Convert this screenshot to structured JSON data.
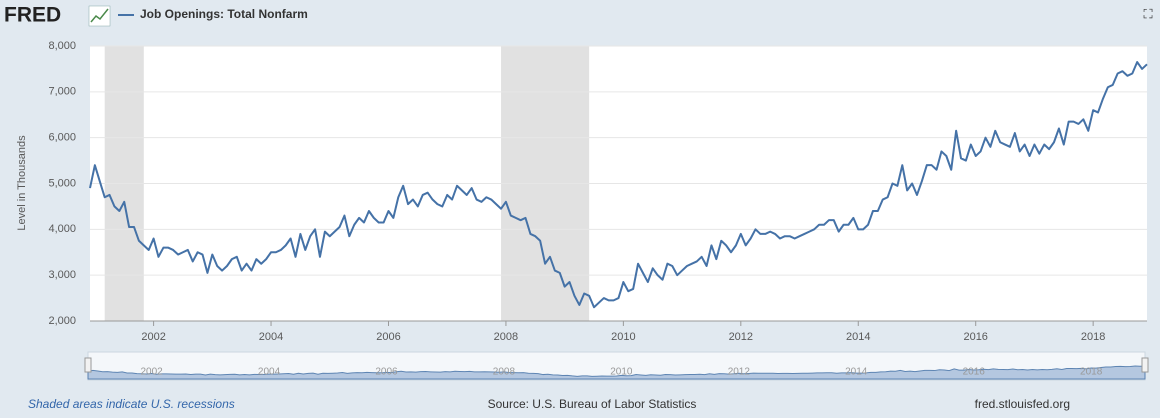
{
  "header": {
    "logo": "FRED",
    "expand_icon": "⛶"
  },
  "chart_data": {
    "type": "line",
    "y_label": "Level in Thousands",
    "series": [
      {
        "name": "Job Openings: Total Nonfarm",
        "color": "#4572a7",
        "x": [
          2000.917,
          2001,
          2001.083,
          2001.167,
          2001.25,
          2001.333,
          2001.417,
          2001.5,
          2001.583,
          2001.667,
          2001.75,
          2001.833,
          2001.917,
          2002,
          2002.083,
          2002.167,
          2002.25,
          2002.333,
          2002.417,
          2002.5,
          2002.583,
          2002.667,
          2002.75,
          2002.833,
          2002.917,
          2003,
          2003.083,
          2003.167,
          2003.25,
          2003.333,
          2003.417,
          2003.5,
          2003.583,
          2003.667,
          2003.75,
          2003.833,
          2003.917,
          2004,
          2004.083,
          2004.167,
          2004.25,
          2004.333,
          2004.417,
          2004.5,
          2004.583,
          2004.667,
          2004.75,
          2004.833,
          2004.917,
          2005,
          2005.083,
          2005.167,
          2005.25,
          2005.333,
          2005.417,
          2005.5,
          2005.583,
          2005.667,
          2005.75,
          2005.833,
          2005.917,
          2006,
          2006.083,
          2006.167,
          2006.25,
          2006.333,
          2006.417,
          2006.5,
          2006.583,
          2006.667,
          2006.75,
          2006.833,
          2006.917,
          2007,
          2007.083,
          2007.167,
          2007.25,
          2007.333,
          2007.417,
          2007.5,
          2007.583,
          2007.667,
          2007.75,
          2007.833,
          2007.917,
          2008,
          2008.083,
          2008.167,
          2008.25,
          2008.333,
          2008.417,
          2008.5,
          2008.583,
          2008.667,
          2008.75,
          2008.833,
          2008.917,
          2009,
          2009.083,
          2009.167,
          2009.25,
          2009.333,
          2009.417,
          2009.5,
          2009.583,
          2009.667,
          2009.75,
          2009.833,
          2009.917,
          2010,
          2010.083,
          2010.167,
          2010.25,
          2010.333,
          2010.417,
          2010.5,
          2010.583,
          2010.667,
          2010.75,
          2010.833,
          2010.917,
          2011,
          2011.083,
          2011.167,
          2011.25,
          2011.333,
          2011.417,
          2011.5,
          2011.583,
          2011.667,
          2011.75,
          2011.833,
          2011.917,
          2012,
          2012.083,
          2012.167,
          2012.25,
          2012.333,
          2012.417,
          2012.5,
          2012.583,
          2012.667,
          2012.75,
          2012.833,
          2012.917,
          2013,
          2013.083,
          2013.167,
          2013.25,
          2013.333,
          2013.417,
          2013.5,
          2013.583,
          2013.667,
          2013.75,
          2013.833,
          2013.917,
          2014,
          2014.083,
          2014.167,
          2014.25,
          2014.333,
          2014.417,
          2014.5,
          2014.583,
          2014.667,
          2014.75,
          2014.833,
          2014.917,
          2015,
          2015.083,
          2015.167,
          2015.25,
          2015.333,
          2015.417,
          2015.5,
          2015.583,
          2015.667,
          2015.75,
          2015.833,
          2015.917,
          2016,
          2016.083,
          2016.167,
          2016.25,
          2016.333,
          2016.417,
          2016.5,
          2016.583,
          2016.667,
          2016.75,
          2016.833,
          2016.917,
          2017,
          2017.083,
          2017.167,
          2017.25,
          2017.333,
          2017.417,
          2017.5,
          2017.583,
          2017.667,
          2017.75,
          2017.833,
          2017.917,
          2018,
          2018.083,
          2018.167,
          2018.25,
          2018.333,
          2018.417,
          2018.5,
          2018.583,
          2018.667,
          2018.75,
          2018.833,
          2018.917
        ],
        "values": [
          4900,
          5400,
          5050,
          4700,
          4750,
          4500,
          4400,
          4600,
          4050,
          4050,
          3750,
          3650,
          3550,
          3800,
          3400,
          3600,
          3600,
          3550,
          3450,
          3500,
          3550,
          3300,
          3500,
          3450,
          3050,
          3450,
          3200,
          3100,
          3200,
          3350,
          3400,
          3100,
          3250,
          3100,
          3350,
          3250,
          3350,
          3500,
          3500,
          3550,
          3650,
          3800,
          3400,
          3900,
          3550,
          3850,
          4000,
          3400,
          3950,
          3850,
          3950,
          4050,
          4300,
          3850,
          4100,
          4250,
          4150,
          4400,
          4250,
          4150,
          4150,
          4400,
          4250,
          4700,
          4950,
          4550,
          4650,
          4500,
          4750,
          4800,
          4650,
          4550,
          4500,
          4750,
          4650,
          4950,
          4850,
          4750,
          4900,
          4650,
          4600,
          4700,
          4650,
          4550,
          4450,
          4600,
          4300,
          4250,
          4200,
          4250,
          3900,
          3850,
          3750,
          3250,
          3400,
          3100,
          3050,
          2750,
          2850,
          2550,
          2350,
          2600,
          2550,
          2300,
          2400,
          2500,
          2450,
          2450,
          2500,
          2850,
          2650,
          2700,
          3250,
          3050,
          2850,
          3150,
          3000,
          2900,
          3250,
          3200,
          3000,
          3100,
          3200,
          3250,
          3300,
          3400,
          3200,
          3650,
          3350,
          3750,
          3650,
          3500,
          3650,
          3900,
          3650,
          3800,
          4000,
          3900,
          3900,
          3950,
          3900,
          3800,
          3850,
          3850,
          3800,
          3850,
          3900,
          3950,
          4000,
          4100,
          4100,
          4200,
          4200,
          3950,
          4100,
          4100,
          4250,
          4000,
          4000,
          4100,
          4400,
          4400,
          4650,
          4700,
          5000,
          4950,
          5400,
          4850,
          5000,
          4750,
          5050,
          5400,
          5400,
          5300,
          5700,
          5600,
          5300,
          6150,
          5550,
          5500,
          5850,
          5600,
          5700,
          6000,
          5800,
          6150,
          5900,
          5850,
          5800,
          6100,
          5700,
          5850,
          5600,
          5850,
          5650,
          5850,
          5750,
          5900,
          6200,
          5850,
          6350,
          6350,
          6300,
          6400,
          6150,
          6600,
          6550,
          6850,
          7100,
          7150,
          7400,
          7450,
          7350,
          7400,
          7650,
          7500,
          7600
        ]
      }
    ],
    "recessions": [
      [
        2001.167,
        2001.833
      ],
      [
        2007.917,
        2009.417
      ]
    ],
    "xlim": [
      2000.917,
      2018.917
    ],
    "xticks": [
      2002,
      2004,
      2006,
      2008,
      2010,
      2012,
      2014,
      2016,
      2018
    ],
    "ylim": [
      2000,
      8000
    ],
    "yticks": [
      {
        "value": 2000,
        "label": "2,000"
      },
      {
        "value": 3000,
        "label": "3,000"
      },
      {
        "value": 4000,
        "label": "4,000"
      },
      {
        "value": 5000,
        "label": "5,000"
      },
      {
        "value": 6000,
        "label": "6,000"
      },
      {
        "value": 7000,
        "label": "7,000"
      },
      {
        "value": 8000,
        "label": "8,000"
      }
    ],
    "grid": true
  },
  "footer": {
    "note": "Shaded areas indicate U.S. recessions",
    "source": "Source: U.S. Bureau of Labor Statistics",
    "site": "fred.stlouisfed.org"
  }
}
